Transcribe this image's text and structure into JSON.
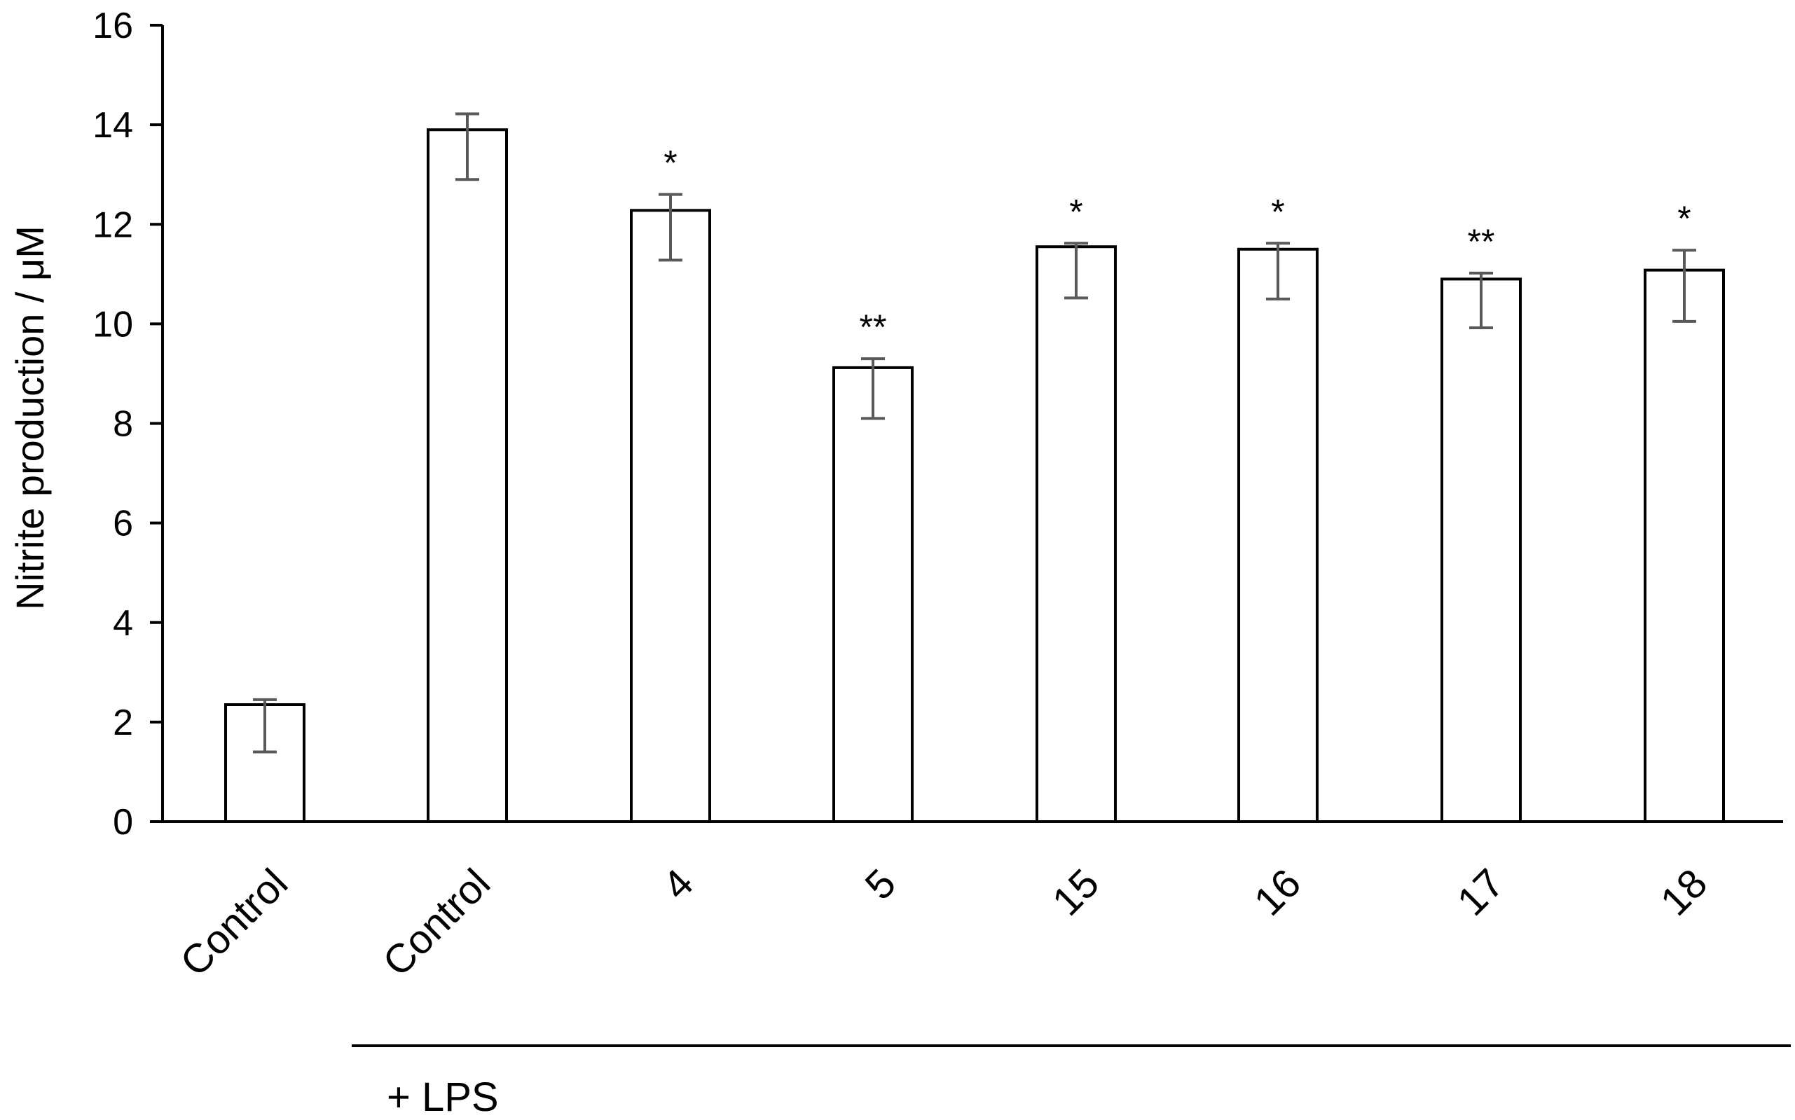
{
  "chart_data": {
    "type": "bar",
    "ylabel": "Nitrite production / μM",
    "ylim": [
      0,
      16
    ],
    "yticks": [
      0,
      2,
      4,
      6,
      8,
      10,
      12,
      14,
      16
    ],
    "categories": [
      "Control",
      "Control",
      "4",
      "5",
      "15",
      "16",
      "17",
      "18"
    ],
    "values": [
      2.35,
      13.9,
      12.28,
      9.12,
      11.55,
      11.5,
      10.9,
      11.08
    ],
    "error_low": [
      1.4,
      12.9,
      11.28,
      8.1,
      10.52,
      10.5,
      9.92,
      10.05
    ],
    "error_high": [
      2.45,
      14.22,
      12.6,
      9.3,
      11.62,
      11.62,
      11.02,
      11.48
    ],
    "significance": [
      "",
      "",
      "*",
      "**",
      "*",
      "*",
      "**",
      "*"
    ],
    "group_label": "+ LPS",
    "group_start_index": 1,
    "grid": false,
    "bar_fill": "#ffffff",
    "bar_stroke": "#000000",
    "error_bar_color": "#595959",
    "axis_color": "#000000"
  }
}
